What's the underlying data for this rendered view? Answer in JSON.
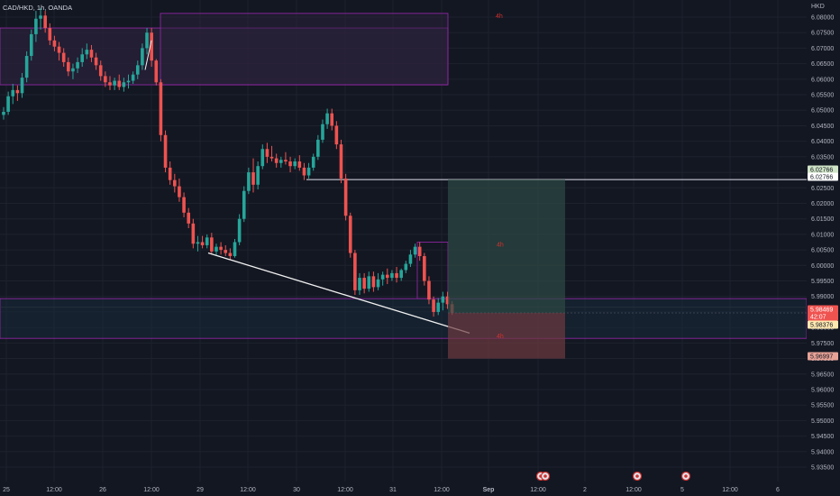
{
  "header": {
    "symbol_line": "CAD/HKD, 1h, OANDA",
    "currency": "HKD"
  },
  "colors": {
    "background": "#131722",
    "up": "#26a69a",
    "down": "#ef5350",
    "zone_border": "#9c27b0",
    "zone_fill": "#2a2139",
    "grid": "#1e222d"
  },
  "chart_data": {
    "type": "candlestick",
    "title": "CAD/HKD, 1h, OANDA",
    "ylabel": "HKD",
    "ylim": [
      5.93,
      6.085
    ],
    "y_ticks": [
      6.08,
      6.075,
      6.07,
      6.065,
      6.06,
      6.055,
      6.05,
      6.045,
      6.04,
      6.035,
      6.03,
      6.025,
      6.02,
      6.015,
      6.01,
      6.005,
      6.0,
      5.995,
      5.99,
      5.985,
      5.98,
      5.975,
      5.97,
      5.965,
      5.96,
      5.955,
      5.95,
      5.945,
      5.94,
      5.935
    ],
    "x_ticks": [
      "25",
      "12:00",
      "26",
      "12:00",
      "29",
      "12:00",
      "30",
      "12:00",
      "31",
      "12:00",
      "Sep",
      "12:00",
      "2",
      "12:00",
      "5",
      "12:00",
      "6"
    ],
    "x_tick_bold": [
      false,
      false,
      false,
      false,
      false,
      false,
      false,
      false,
      false,
      false,
      true,
      false,
      false,
      false,
      false,
      false,
      false
    ],
    "price_tags": [
      {
        "label": "6.02766",
        "price": 6.02766,
        "bg": "#cfe3c6",
        "fg": "#131722"
      },
      {
        "label": "6.02766",
        "price": 6.02766,
        "bg": "#ffffff",
        "fg": "#131722"
      },
      {
        "label": "5.98469",
        "price": 5.98469,
        "bg": "#ef5350",
        "fg": "#ffffff"
      },
      {
        "label": "42:07",
        "price": 5.9829,
        "bg": "#ef5350",
        "fg": "#ffffff"
      },
      {
        "label": "5.98376",
        "price": 5.981,
        "bg": "#ffe8b0",
        "fg": "#131722"
      },
      {
        "label": "5.96997",
        "price": 5.96997,
        "bg": "#e6a296",
        "fg": "#131722"
      }
    ],
    "zones": [
      {
        "label": "4h",
        "top": 6.0812,
        "bottom": 6.0582
      },
      {
        "label": "4h",
        "top": 5.9893,
        "bottom": 5.9765
      }
    ],
    "position": {
      "entry": 5.98469,
      "target": 6.02766,
      "stop": 5.96997,
      "label_upper": "4h",
      "label_lower": "4h"
    },
    "horizontal_line": {
      "price": 6.02766
    },
    "trendline": {
      "from": {
        "candle": 45,
        "price": 6.004
      },
      "to": {
        "candle": 103,
        "price": 5.9782
      }
    },
    "marker_icons": [
      "event-icon",
      "event-icon",
      "event-icon",
      "event-icon"
    ],
    "candles": [
      [
        6.0485,
        6.051,
        6.047,
        6.0495
      ],
      [
        6.0495,
        6.056,
        6.0485,
        6.0545
      ],
      [
        6.0545,
        6.0585,
        6.052,
        6.0565
      ],
      [
        6.0565,
        6.058,
        6.053,
        6.0555
      ],
      [
        6.0555,
        6.062,
        6.054,
        6.0605
      ],
      [
        6.0605,
        6.069,
        6.059,
        6.0675
      ],
      [
        6.0675,
        6.076,
        6.066,
        6.0745
      ],
      [
        6.0745,
        6.082,
        6.072,
        6.0795
      ],
      [
        6.0795,
        6.083,
        6.076,
        6.0805
      ],
      [
        6.0805,
        6.082,
        6.075,
        6.0765
      ],
      [
        6.0765,
        6.078,
        6.071,
        6.0725
      ],
      [
        6.0725,
        6.074,
        6.069,
        6.0705
      ],
      [
        6.0705,
        6.072,
        6.066,
        6.0685
      ],
      [
        6.0685,
        6.07,
        6.064,
        6.0655
      ],
      [
        6.0655,
        6.067,
        6.061,
        6.0625
      ],
      [
        6.0625,
        6.065,
        6.06,
        6.0635
      ],
      [
        6.0635,
        6.067,
        6.062,
        6.0655
      ],
      [
        6.0655,
        6.07,
        6.064,
        6.068
      ],
      [
        6.068,
        6.0715,
        6.0665,
        6.0695
      ],
      [
        6.0695,
        6.071,
        6.0655,
        6.067
      ],
      [
        6.067,
        6.0685,
        6.063,
        6.0645
      ],
      [
        6.0645,
        6.066,
        6.0595,
        6.061
      ],
      [
        6.061,
        6.0625,
        6.0575,
        6.059
      ],
      [
        6.059,
        6.061,
        6.0565,
        6.058
      ],
      [
        6.058,
        6.0605,
        6.0565,
        6.0595
      ],
      [
        6.0595,
        6.0615,
        6.0565,
        6.0575
      ],
      [
        6.0575,
        6.0605,
        6.056,
        6.059
      ],
      [
        6.059,
        6.0615,
        6.057,
        6.0595
      ],
      [
        6.0595,
        6.0625,
        6.0585,
        6.0615
      ],
      [
        6.0615,
        6.066,
        6.06,
        6.0645
      ],
      [
        6.0645,
        6.0715,
        6.063,
        6.07
      ],
      [
        6.07,
        6.0765,
        6.068,
        6.075
      ],
      [
        6.075,
        6.0765,
        6.064,
        6.066
      ],
      [
        6.066,
        6.0665,
        6.058,
        6.059
      ],
      [
        6.059,
        6.06,
        6.04,
        6.042
      ],
      [
        6.042,
        6.0435,
        6.03,
        6.0315
      ],
      [
        6.0315,
        6.0335,
        6.026,
        6.0275
      ],
      [
        6.0275,
        6.0295,
        6.0235,
        6.0255
      ],
      [
        6.0255,
        6.028,
        6.0205,
        6.022
      ],
      [
        6.022,
        6.0235,
        6.0155,
        6.017
      ],
      [
        6.017,
        6.0185,
        6.012,
        6.0135
      ],
      [
        6.0135,
        6.015,
        6.0055,
        6.007
      ],
      [
        6.007,
        6.0095,
        6.0045,
        6.0075
      ],
      [
        6.0075,
        6.0095,
        6.0055,
        6.0065
      ],
      [
        6.0065,
        6.01,
        6.0055,
        6.009
      ],
      [
        6.009,
        6.0105,
        6.0035,
        6.0045
      ],
      [
        6.0045,
        6.007,
        6.003,
        6.006
      ],
      [
        6.006,
        6.0075,
        6.0035,
        6.005
      ],
      [
        6.005,
        6.0065,
        6.003,
        6.004
      ],
      [
        6.004,
        6.0055,
        6.002,
        6.003
      ],
      [
        6.003,
        6.0085,
        6.0025,
        6.0075
      ],
      [
        6.0075,
        6.0165,
        6.0065,
        6.015
      ],
      [
        6.015,
        6.0255,
        6.014,
        6.024
      ],
      [
        6.024,
        6.0315,
        6.023,
        6.03
      ],
      [
        6.03,
        6.0345,
        6.0235,
        6.026
      ],
      [
        6.026,
        6.0335,
        6.0245,
        6.032
      ],
      [
        6.032,
        6.039,
        6.031,
        6.0375
      ],
      [
        6.0375,
        6.0395,
        6.033,
        6.035
      ],
      [
        6.035,
        6.0385,
        6.0335,
        6.0345
      ],
      [
        6.0345,
        6.036,
        6.0315,
        6.033
      ],
      [
        6.033,
        6.035,
        6.0315,
        6.034
      ],
      [
        6.034,
        6.0365,
        6.0325,
        6.0335
      ],
      [
        6.0335,
        6.035,
        6.03,
        6.032
      ],
      [
        6.032,
        6.0345,
        6.031,
        6.0335
      ],
      [
        6.0335,
        6.0355,
        6.0305,
        6.0315
      ],
      [
        6.0315,
        6.033,
        6.0275,
        6.029
      ],
      [
        6.029,
        6.033,
        6.028,
        6.0315
      ],
      [
        6.0315,
        6.036,
        6.0305,
        6.035
      ],
      [
        6.035,
        6.042,
        6.034,
        6.0405
      ],
      [
        6.0405,
        6.047,
        6.0395,
        6.0455
      ],
      [
        6.0455,
        6.0505,
        6.044,
        6.049
      ],
      [
        6.049,
        6.0505,
        6.0435,
        6.045
      ],
      [
        6.045,
        6.0465,
        6.0375,
        6.039
      ],
      [
        6.039,
        6.0405,
        6.0265,
        6.028
      ],
      [
        6.028,
        6.0295,
        6.0145,
        6.016
      ],
      [
        6.016,
        6.017,
        6.0025,
        6.004
      ],
      [
        6.004,
        6.005,
        5.9905,
        5.992
      ],
      [
        5.992,
        5.9975,
        5.9905,
        5.996
      ],
      [
        5.996,
        5.9975,
        5.991,
        5.9925
      ],
      [
        5.9925,
        5.998,
        5.9915,
        5.9965
      ],
      [
        5.9965,
        5.998,
        5.9915,
        5.993
      ],
      [
        5.993,
        5.9975,
        5.992,
        5.9955
      ],
      [
        5.9955,
        5.998,
        5.9935,
        5.997
      ],
      [
        5.997,
        5.999,
        5.994,
        5.996
      ],
      [
        5.996,
        5.9985,
        5.995,
        5.9975
      ],
      [
        5.9975,
        5.9995,
        5.9945,
        5.996
      ],
      [
        5.996,
        5.999,
        5.995,
        5.9985
      ],
      [
        5.9985,
        6.0015,
        5.9975,
        6.0005
      ],
      [
        6.0005,
        6.005,
        5.9995,
        6.0035
      ],
      [
        6.0035,
        6.007,
        6.0025,
        6.006
      ],
      [
        6.006,
        6.0075,
        6.0015,
        6.003
      ],
      [
        6.003,
        6.004,
        5.9935,
        5.995
      ],
      [
        5.995,
        5.9965,
        5.9875,
        5.989
      ],
      [
        5.989,
        5.99,
        5.9835,
        5.985
      ],
      [
        5.985,
        5.9895,
        5.984,
        5.988
      ],
      [
        5.988,
        5.9915,
        5.9855,
        5.99
      ],
      [
        5.99,
        5.9915,
        5.986,
        5.9875
      ],
      [
        5.9875,
        5.9885,
        5.984,
        5.98469
      ]
    ]
  }
}
